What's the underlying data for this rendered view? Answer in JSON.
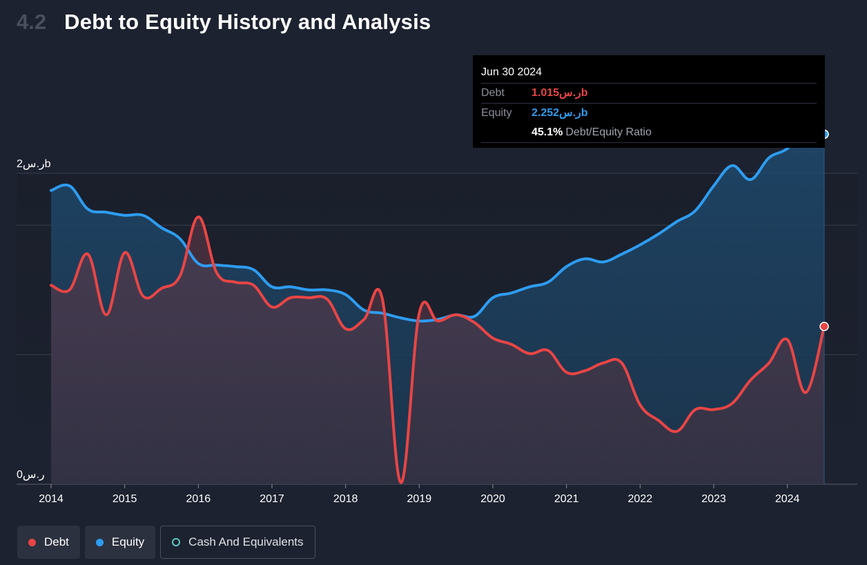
{
  "header": {
    "section_number": "4.2",
    "title": "Debt to Equity History and Analysis"
  },
  "tooltip": {
    "date": "Jun 30 2024",
    "debt_label": "Debt",
    "debt_value": "1.015ر.سb",
    "equity_label": "Equity",
    "equity_value": "2.252ر.سb",
    "ratio_value": "45.1%",
    "ratio_label": "Debt/Equity Ratio"
  },
  "legend": {
    "debt": "Debt",
    "equity": "Equity",
    "cash": "Cash And Equivalents"
  },
  "colors": {
    "debt": "#e84545",
    "equity": "#2e9cf0",
    "cash": "#5cc9c2",
    "background": "#1d2230"
  },
  "chart_data": {
    "type": "area",
    "y_tick_labels": [
      "2ر.سb",
      "0ر.س"
    ],
    "ylim": [
      0,
      2.4
    ],
    "x_tick_labels": [
      "2014",
      "2015",
      "2016",
      "2017",
      "2018",
      "2019",
      "2020",
      "2021",
      "2022",
      "2023",
      "2024"
    ],
    "xlim": [
      2014.0,
      2024.5
    ],
    "series": [
      {
        "name": "Debt",
        "points": [
          [
            2014.0,
            1.28
          ],
          [
            2014.25,
            1.25
          ],
          [
            2014.5,
            1.48
          ],
          [
            2014.75,
            1.09
          ],
          [
            2015.0,
            1.49
          ],
          [
            2015.25,
            1.21
          ],
          [
            2015.5,
            1.26
          ],
          [
            2015.75,
            1.34
          ],
          [
            2016.0,
            1.72
          ],
          [
            2016.25,
            1.36
          ],
          [
            2016.5,
            1.3
          ],
          [
            2016.75,
            1.28
          ],
          [
            2017.0,
            1.14
          ],
          [
            2017.25,
            1.2
          ],
          [
            2017.5,
            1.2
          ],
          [
            2017.75,
            1.19
          ],
          [
            2018.0,
            1.0
          ],
          [
            2018.25,
            1.06
          ],
          [
            2018.5,
            1.19
          ],
          [
            2018.75,
            0.01
          ],
          [
            2019.0,
            1.1
          ],
          [
            2019.25,
            1.05
          ],
          [
            2019.5,
            1.09
          ],
          [
            2019.75,
            1.04
          ],
          [
            2020.0,
            0.94
          ],
          [
            2020.25,
            0.9
          ],
          [
            2020.5,
            0.84
          ],
          [
            2020.75,
            0.86
          ],
          [
            2021.0,
            0.72
          ],
          [
            2021.25,
            0.73
          ],
          [
            2021.5,
            0.78
          ],
          [
            2021.75,
            0.78
          ],
          [
            2022.0,
            0.51
          ],
          [
            2022.25,
            0.41
          ],
          [
            2022.5,
            0.34
          ],
          [
            2022.75,
            0.48
          ],
          [
            2023.0,
            0.48
          ],
          [
            2023.25,
            0.52
          ],
          [
            2023.5,
            0.67
          ],
          [
            2023.75,
            0.78
          ],
          [
            2024.0,
            0.93
          ],
          [
            2024.25,
            0.59
          ],
          [
            2024.5,
            1.015
          ]
        ]
      },
      {
        "name": "Equity",
        "points": [
          [
            2014.0,
            1.89
          ],
          [
            2014.25,
            1.92
          ],
          [
            2014.5,
            1.77
          ],
          [
            2014.75,
            1.75
          ],
          [
            2015.0,
            1.73
          ],
          [
            2015.25,
            1.73
          ],
          [
            2015.5,
            1.65
          ],
          [
            2015.75,
            1.58
          ],
          [
            2016.0,
            1.42
          ],
          [
            2016.25,
            1.41
          ],
          [
            2016.5,
            1.4
          ],
          [
            2016.75,
            1.38
          ],
          [
            2017.0,
            1.27
          ],
          [
            2017.25,
            1.27
          ],
          [
            2017.5,
            1.25
          ],
          [
            2017.75,
            1.25
          ],
          [
            2018.0,
            1.22
          ],
          [
            2018.25,
            1.12
          ],
          [
            2018.5,
            1.1
          ],
          [
            2018.75,
            1.07
          ],
          [
            2019.0,
            1.05
          ],
          [
            2019.25,
            1.06
          ],
          [
            2019.5,
            1.09
          ],
          [
            2019.75,
            1.08
          ],
          [
            2020.0,
            1.2
          ],
          [
            2020.25,
            1.23
          ],
          [
            2020.5,
            1.27
          ],
          [
            2020.75,
            1.3
          ],
          [
            2021.0,
            1.4
          ],
          [
            2021.25,
            1.45
          ],
          [
            2021.5,
            1.43
          ],
          [
            2021.75,
            1.48
          ],
          [
            2022.0,
            1.54
          ],
          [
            2022.25,
            1.61
          ],
          [
            2022.5,
            1.69
          ],
          [
            2022.75,
            1.76
          ],
          [
            2023.0,
            1.92
          ],
          [
            2023.25,
            2.05
          ],
          [
            2023.5,
            1.96
          ],
          [
            2023.75,
            2.1
          ],
          [
            2024.0,
            2.16
          ],
          [
            2024.25,
            2.29
          ],
          [
            2024.5,
            2.252
          ]
        ]
      }
    ],
    "highlight_x": 2024.5
  }
}
